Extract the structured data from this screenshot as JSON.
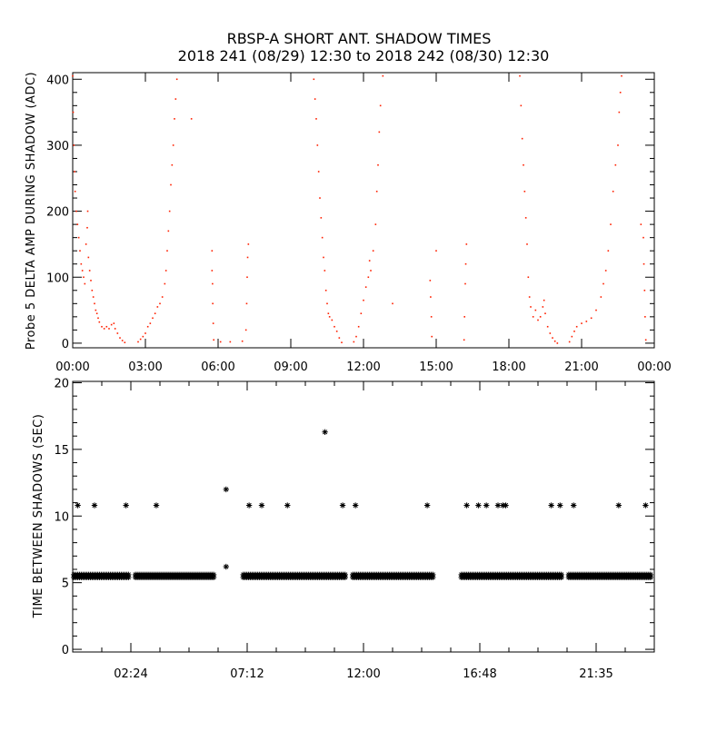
{
  "title": "RBSP-A SHORT ANT. SHADOW TIMES",
  "subtitle": "2018 241 (08/29) 12:30 to 2018 242 (08/30) 12:30",
  "chart_data": [
    {
      "type": "scatter",
      "ylabel": "Probe 5 DELTA AMP DURING SHADOW (ADC)",
      "xlabel": "",
      "x_unit": "hours",
      "xlim": [
        0,
        24
      ],
      "ylim": [
        -7,
        410
      ],
      "grid": false,
      "color": "#ff2000",
      "x_ticks": [
        0,
        3,
        6,
        9,
        12,
        15,
        18,
        21,
        24
      ],
      "x_tick_labels": [
        "00:00",
        "03:00",
        "06:00",
        "09:00",
        "12:00",
        "15:00",
        "18:00",
        "21:00",
        "00:00"
      ],
      "y_ticks": [
        0,
        100,
        200,
        300,
        400
      ],
      "y_tick_labels": [
        "0",
        "100",
        "200",
        "300",
        "400"
      ],
      "points": [
        [
          0.0,
          405
        ],
        [
          0.02,
          350
        ],
        [
          0.05,
          300
        ],
        [
          0.08,
          260
        ],
        [
          0.1,
          230
        ],
        [
          0.15,
          200
        ],
        [
          0.2,
          180
        ],
        [
          0.25,
          160
        ],
        [
          0.3,
          140
        ],
        [
          0.35,
          120
        ],
        [
          0.4,
          110
        ],
        [
          0.45,
          100
        ],
        [
          0.5,
          90
        ],
        [
          0.55,
          150
        ],
        [
          0.6,
          175
        ],
        [
          0.62,
          200
        ],
        [
          0.65,
          130
        ],
        [
          0.7,
          110
        ],
        [
          0.75,
          95
        ],
        [
          0.8,
          80
        ],
        [
          0.85,
          70
        ],
        [
          0.9,
          60
        ],
        [
          0.95,
          50
        ],
        [
          1.0,
          45
        ],
        [
          1.05,
          38
        ],
        [
          1.1,
          32
        ],
        [
          1.2,
          25
        ],
        [
          1.3,
          22
        ],
        [
          1.4,
          25
        ],
        [
          1.5,
          22
        ],
        [
          1.6,
          28
        ],
        [
          1.7,
          30
        ],
        [
          1.75,
          22
        ],
        [
          1.85,
          15
        ],
        [
          1.95,
          8
        ],
        [
          2.05,
          4
        ],
        [
          2.15,
          1
        ],
        [
          2.7,
          2
        ],
        [
          2.8,
          6
        ],
        [
          2.9,
          10
        ],
        [
          3.0,
          15
        ],
        [
          3.1,
          25
        ],
        [
          3.2,
          30
        ],
        [
          3.3,
          38
        ],
        [
          3.4,
          45
        ],
        [
          3.5,
          55
        ],
        [
          3.6,
          60
        ],
        [
          3.7,
          70
        ],
        [
          3.8,
          90
        ],
        [
          3.85,
          110
        ],
        [
          3.9,
          140
        ],
        [
          3.95,
          170
        ],
        [
          4.0,
          200
        ],
        [
          4.05,
          240
        ],
        [
          4.1,
          270
        ],
        [
          4.15,
          300
        ],
        [
          4.2,
          340
        ],
        [
          4.25,
          370
        ],
        [
          4.3,
          400
        ],
        [
          4.9,
          340
        ],
        [
          5.75,
          140
        ],
        [
          5.75,
          110
        ],
        [
          5.77,
          90
        ],
        [
          5.78,
          60
        ],
        [
          5.8,
          30
        ],
        [
          5.82,
          5
        ],
        [
          6.1,
          2
        ],
        [
          6.5,
          2
        ],
        [
          7.0,
          3
        ],
        [
          7.15,
          20
        ],
        [
          7.18,
          60
        ],
        [
          7.2,
          100
        ],
        [
          7.22,
          130
        ],
        [
          7.25,
          150
        ],
        [
          9.95,
          400
        ],
        [
          10.0,
          370
        ],
        [
          10.05,
          340
        ],
        [
          10.1,
          300
        ],
        [
          10.15,
          260
        ],
        [
          10.2,
          220
        ],
        [
          10.25,
          190
        ],
        [
          10.3,
          160
        ],
        [
          10.35,
          130
        ],
        [
          10.4,
          110
        ],
        [
          10.45,
          80
        ],
        [
          10.5,
          60
        ],
        [
          10.55,
          45
        ],
        [
          10.6,
          40
        ],
        [
          10.7,
          35
        ],
        [
          10.8,
          25
        ],
        [
          10.9,
          18
        ],
        [
          11.0,
          8
        ],
        [
          11.1,
          1
        ],
        [
          11.6,
          2
        ],
        [
          11.7,
          10
        ],
        [
          11.8,
          25
        ],
        [
          11.9,
          45
        ],
        [
          12.0,
          65
        ],
        [
          12.1,
          85
        ],
        [
          12.2,
          100
        ],
        [
          12.25,
          125
        ],
        [
          12.3,
          110
        ],
        [
          12.4,
          140
        ],
        [
          12.5,
          180
        ],
        [
          12.55,
          230
        ],
        [
          12.6,
          270
        ],
        [
          12.65,
          320
        ],
        [
          12.7,
          360
        ],
        [
          12.8,
          405
        ],
        [
          13.2,
          60
        ],
        [
          14.75,
          95
        ],
        [
          14.77,
          70
        ],
        [
          14.8,
          40
        ],
        [
          14.82,
          10
        ],
        [
          15.0,
          140
        ],
        [
          16.15,
          5
        ],
        [
          16.17,
          40
        ],
        [
          16.2,
          90
        ],
        [
          16.22,
          120
        ],
        [
          16.25,
          150
        ],
        [
          18.45,
          405
        ],
        [
          18.5,
          360
        ],
        [
          18.55,
          310
        ],
        [
          18.6,
          270
        ],
        [
          18.65,
          230
        ],
        [
          18.7,
          190
        ],
        [
          18.75,
          150
        ],
        [
          18.8,
          100
        ],
        [
          18.85,
          70
        ],
        [
          18.9,
          55
        ],
        [
          19.0,
          40
        ],
        [
          19.1,
          50
        ],
        [
          19.2,
          35
        ],
        [
          19.3,
          40
        ],
        [
          19.4,
          55
        ],
        [
          19.45,
          65
        ],
        [
          19.5,
          45
        ],
        [
          19.6,
          25
        ],
        [
          19.7,
          15
        ],
        [
          19.8,
          8
        ],
        [
          19.9,
          3
        ],
        [
          20.0,
          0
        ],
        [
          20.5,
          2
        ],
        [
          20.6,
          10
        ],
        [
          20.7,
          18
        ],
        [
          20.8,
          25
        ],
        [
          21.0,
          30
        ],
        [
          21.2,
          33
        ],
        [
          21.4,
          38
        ],
        [
          21.6,
          50
        ],
        [
          21.8,
          70
        ],
        [
          21.9,
          90
        ],
        [
          22.0,
          110
        ],
        [
          22.1,
          140
        ],
        [
          22.2,
          180
        ],
        [
          22.3,
          230
        ],
        [
          22.4,
          270
        ],
        [
          22.5,
          300
        ],
        [
          22.55,
          350
        ],
        [
          22.6,
          380
        ],
        [
          22.65,
          405
        ],
        [
          23.45,
          180
        ],
        [
          23.55,
          160
        ],
        [
          23.57,
          120
        ],
        [
          23.6,
          80
        ],
        [
          23.62,
          40
        ],
        [
          23.65,
          5
        ]
      ]
    },
    {
      "type": "scatter",
      "ylabel": "TIME BETWEEN SHADOWS (SEC)",
      "xlabel": "",
      "x_unit": "hours",
      "xlim": [
        0,
        24
      ],
      "ylim": [
        -0.2,
        20.1
      ],
      "grid": false,
      "color": "#000000",
      "marker": "asterisk",
      "x_ticks": [
        2.4,
        7.2,
        12,
        16.8,
        21.6
      ],
      "x_tick_labels": [
        "02:24",
        "07:12",
        "12:00",
        "16:48",
        "21:35"
      ],
      "y_ticks": [
        0,
        5,
        10,
        15,
        20
      ],
      "y_tick_labels": [
        "0",
        "5",
        "10",
        "15",
        "20"
      ],
      "baseline_runs": [
        {
          "x_start": 0.05,
          "x_end": 2.3,
          "y": 5.5
        },
        {
          "x_start": 2.59,
          "x_end": 5.88,
          "y": 5.5
        },
        {
          "x_start": 7.04,
          "x_end": 11.27,
          "y": 5.5
        },
        {
          "x_start": 11.56,
          "x_end": 14.9,
          "y": 5.5
        },
        {
          "x_start": 16.04,
          "x_end": 20.19,
          "y": 5.5
        },
        {
          "x_start": 20.47,
          "x_end": 23.87,
          "y": 5.5
        }
      ],
      "points": [
        [
          0.21,
          10.8
        ],
        [
          0.9,
          10.8
        ],
        [
          2.2,
          10.8
        ],
        [
          3.45,
          10.8
        ],
        [
          6.33,
          12.0
        ],
        [
          6.33,
          6.2
        ],
        [
          7.28,
          10.8
        ],
        [
          7.8,
          10.8
        ],
        [
          8.86,
          10.8
        ],
        [
          10.41,
          16.3
        ],
        [
          11.14,
          10.8
        ],
        [
          11.67,
          10.8
        ],
        [
          14.63,
          10.8
        ],
        [
          16.26,
          10.8
        ],
        [
          16.74,
          10.8
        ],
        [
          17.07,
          10.8
        ],
        [
          17.55,
          10.8
        ],
        [
          17.75,
          10.8
        ],
        [
          17.87,
          10.8
        ],
        [
          19.75,
          10.8
        ],
        [
          20.11,
          10.8
        ],
        [
          20.67,
          10.8
        ],
        [
          22.53,
          10.8
        ],
        [
          23.64,
          10.8
        ]
      ]
    }
  ]
}
